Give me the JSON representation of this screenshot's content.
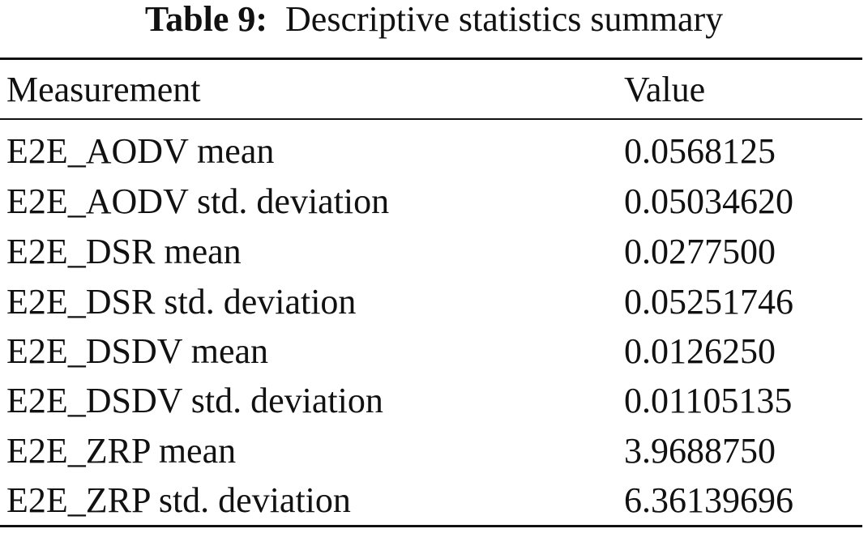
{
  "caption": {
    "label": "Table 9:",
    "text": "Descriptive statistics summary"
  },
  "table": {
    "headers": [
      "Measurement",
      "Value"
    ],
    "rows": [
      [
        "E2E_AODV mean",
        "0.0568125"
      ],
      [
        "E2E_AODV std. deviation",
        "0.05034620"
      ],
      [
        "E2E_DSR mean",
        "0.0277500"
      ],
      [
        "E2E_DSR std. deviation",
        "0.05251746"
      ],
      [
        "E2E_DSDV mean",
        "0.0126250"
      ],
      [
        "E2E_DSDV std. deviation",
        "0.01105135"
      ],
      [
        "E2E_ZRP mean",
        "3.9688750"
      ],
      [
        "E2E_ZRP std. deviation",
        "6.36139696"
      ]
    ]
  }
}
